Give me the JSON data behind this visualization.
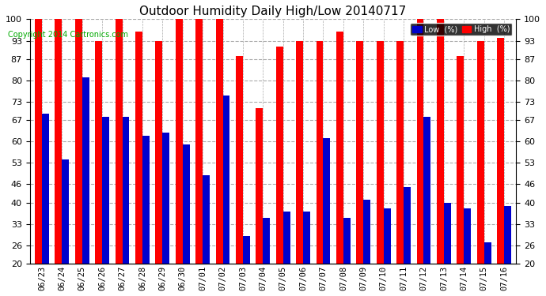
{
  "title": "Outdoor Humidity Daily High/Low 20140717",
  "copyright": "Copyright 2014 Cartronics.com",
  "dates": [
    "06/23",
    "06/24",
    "06/25",
    "06/26",
    "06/27",
    "06/28",
    "06/29",
    "06/30",
    "07/01",
    "07/02",
    "07/03",
    "07/04",
    "07/05",
    "07/06",
    "07/07",
    "07/08",
    "07/09",
    "07/10",
    "07/11",
    "07/12",
    "07/13",
    "07/14",
    "07/15",
    "07/16"
  ],
  "high": [
    100,
    100,
    100,
    93,
    100,
    96,
    93,
    100,
    100,
    100,
    88,
    71,
    91,
    93,
    93,
    96,
    93,
    93,
    93,
    100,
    100,
    88,
    93,
    94
  ],
  "low": [
    69,
    54,
    81,
    68,
    68,
    62,
    63,
    59,
    49,
    75,
    29,
    35,
    37,
    37,
    61,
    35,
    41,
    38,
    45,
    68,
    40,
    38,
    27,
    39
  ],
  "ylim": [
    20,
    100
  ],
  "yticks": [
    20,
    26,
    33,
    40,
    46,
    53,
    60,
    67,
    73,
    80,
    87,
    93,
    100
  ],
  "bg_color": "#ffffff",
  "plot_bg_color": "#ffffff",
  "bar_width": 0.35,
  "high_color": "#ff0000",
  "low_color": "#0000cc",
  "grid_color": "#aaaaaa",
  "title_color": "#000000",
  "legend_low_label": "Low  (%)",
  "legend_high_label": "High  (%)"
}
